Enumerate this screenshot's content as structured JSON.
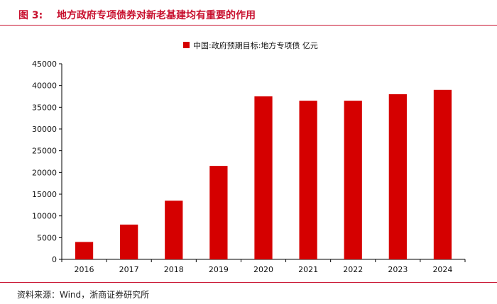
{
  "header": {
    "figure_number": "图 3:",
    "title": "地方政府专项债券对新老基建均有重要的作用"
  },
  "footer": {
    "source": "资料来源：Wind，浙商证券研究所"
  },
  "chart_data": {
    "type": "bar",
    "categories": [
      "2016",
      "2017",
      "2018",
      "2019",
      "2020",
      "2021",
      "2022",
      "2023",
      "2024"
    ],
    "series": [
      {
        "name": "中国:政府预期目标:地方专项债 亿元",
        "values": [
          4000,
          8000,
          13500,
          21500,
          37500,
          36500,
          36500,
          38000,
          39000
        ],
        "color": "#d50000"
      }
    ],
    "yticks": [
      0,
      5000,
      10000,
      15000,
      20000,
      25000,
      30000,
      35000,
      40000,
      45000
    ],
    "ylim": [
      0,
      45000
    ],
    "legend": "top-center",
    "grid": false
  }
}
